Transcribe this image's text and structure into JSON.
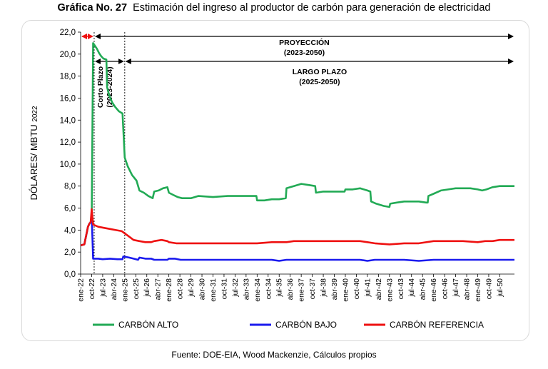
{
  "header": {
    "label": "Gráfica No. 27",
    "title": "Estimación del ingreso al productor de carbón para generación de electricidad"
  },
  "footer": {
    "source": "Fuente: DOE-EIA, Wood Mackenzie, Cálculos propios"
  },
  "chart_data": {
    "type": "line",
    "ylabel_main": "DÓLARES/ MBTU",
    "ylabel_sub": "2022",
    "ylim": [
      0,
      22
    ],
    "yticks": [
      "0,0",
      "2,0",
      "4,0",
      "6,0",
      "8,0",
      "10,0",
      "12,0",
      "14,0",
      "16,0",
      "18,0",
      "20,0",
      "22,0"
    ],
    "xticks": [
      "ene-22",
      "oct-22",
      "jul-23",
      "abr-24",
      "ene-25",
      "oct-25",
      "jul-26",
      "abr-27",
      "ene-28",
      "oct-28",
      "jul-29",
      "abr-30",
      "ene-31",
      "oct-31",
      "jul-32",
      "abr-33",
      "ene-34",
      "oct-34",
      "jul-35",
      "abr-36",
      "ene-37",
      "oct-37",
      "jul-38",
      "abr-39",
      "ene-40",
      "oct-40",
      "jul-41",
      "abr-42",
      "ene-43",
      "oct-43",
      "jul-44",
      "abr-45",
      "ene-46",
      "oct-46",
      "jul-47",
      "abr-48",
      "ene-49",
      "oct-49",
      "jul-50"
    ],
    "annotations": {
      "proyeccion": "PROYECCIÓN",
      "proyeccion_range": "(2023-2050)",
      "largo_plazo": "LARGO PLAZO",
      "largo_plazo_range": "(2025-2050)",
      "corto_plazo": "Corto Plazo",
      "corto_plazo_range": "(2023-2024)"
    },
    "legend_position": "bottom",
    "series": [
      {
        "name": "CARBÓN ALTO",
        "color": "#22aa55",
        "points": [
          [
            2022.0,
            2.6
          ],
          [
            2022.25,
            2.7
          ],
          [
            2022.5,
            4.3
          ],
          [
            2022.6,
            4.6
          ],
          [
            2022.68,
            4.7
          ],
          [
            2022.75,
            5.2
          ],
          [
            2022.85,
            21.0
          ],
          [
            2023.1,
            20.5
          ],
          [
            2023.25,
            20.1
          ],
          [
            2023.4,
            19.8
          ],
          [
            2023.55,
            19.6
          ],
          [
            2023.75,
            19.5
          ],
          [
            2023.8,
            17.0
          ],
          [
            2023.95,
            16.2
          ],
          [
            2024.15,
            15.6
          ],
          [
            2024.35,
            15.2
          ],
          [
            2024.6,
            14.8
          ],
          [
            2024.85,
            14.6
          ],
          [
            2025.0,
            10.6
          ],
          [
            2025.2,
            9.8
          ],
          [
            2025.5,
            9.0
          ],
          [
            2025.8,
            8.5
          ],
          [
            2026.0,
            7.6
          ],
          [
            2026.3,
            7.4
          ],
          [
            2026.6,
            7.1
          ],
          [
            2026.9,
            6.9
          ],
          [
            2027.0,
            7.5
          ],
          [
            2027.3,
            7.6
          ],
          [
            2027.6,
            7.8
          ],
          [
            2027.9,
            7.9
          ],
          [
            2028.0,
            7.4
          ],
          [
            2028.3,
            7.2
          ],
          [
            2028.6,
            7.0
          ],
          [
            2028.9,
            6.9
          ],
          [
            2029.0,
            6.9
          ],
          [
            2029.5,
            6.9
          ],
          [
            2030.0,
            7.1
          ],
          [
            2031.0,
            7.0
          ],
          [
            2032.0,
            7.1
          ],
          [
            2033.0,
            7.1
          ],
          [
            2033.95,
            7.1
          ],
          [
            2034.0,
            6.7
          ],
          [
            2034.5,
            6.7
          ],
          [
            2035.0,
            6.8
          ],
          [
            2035.5,
            6.8
          ],
          [
            2035.95,
            6.9
          ],
          [
            2036.0,
            7.8
          ],
          [
            2036.5,
            8.0
          ],
          [
            2037.0,
            8.2
          ],
          [
            2037.5,
            8.1
          ],
          [
            2037.95,
            8.0
          ],
          [
            2038.0,
            7.4
          ],
          [
            2038.5,
            7.5
          ],
          [
            2039.0,
            7.5
          ],
          [
            2039.95,
            7.5
          ],
          [
            2040.0,
            7.7
          ],
          [
            2040.5,
            7.7
          ],
          [
            2041.0,
            7.8
          ],
          [
            2041.5,
            7.6
          ],
          [
            2041.7,
            7.5
          ],
          [
            2041.75,
            6.6
          ],
          [
            2042.1,
            6.4
          ],
          [
            2042.6,
            6.2
          ],
          [
            2043.0,
            6.1
          ],
          [
            2043.05,
            6.4
          ],
          [
            2043.5,
            6.5
          ],
          [
            2044.0,
            6.6
          ],
          [
            2044.5,
            6.6
          ],
          [
            2045.0,
            6.6
          ],
          [
            2045.5,
            6.5
          ],
          [
            2045.6,
            6.5
          ],
          [
            2045.65,
            7.1
          ],
          [
            2046.0,
            7.3
          ],
          [
            2046.5,
            7.6
          ],
          [
            2047.0,
            7.7
          ],
          [
            2047.5,
            7.8
          ],
          [
            2048.0,
            7.8
          ],
          [
            2048.5,
            7.8
          ],
          [
            2049.0,
            7.7
          ],
          [
            2049.3,
            7.6
          ],
          [
            2049.6,
            7.7
          ],
          [
            2050.0,
            7.9
          ],
          [
            2050.5,
            8.0
          ],
          [
            2051.0,
            8.0
          ],
          [
            2051.5,
            8.0
          ]
        ]
      },
      {
        "name": "CARBÓN BAJO",
        "color": "#1a1aee",
        "points": [
          [
            2022.0,
            2.6
          ],
          [
            2022.25,
            2.7
          ],
          [
            2022.5,
            4.3
          ],
          [
            2022.6,
            4.6
          ],
          [
            2022.68,
            4.7
          ],
          [
            2022.75,
            5.3
          ],
          [
            2022.85,
            1.4
          ],
          [
            2023.2,
            1.4
          ],
          [
            2023.5,
            1.35
          ],
          [
            2024.0,
            1.4
          ],
          [
            2024.5,
            1.35
          ],
          [
            2024.85,
            1.35
          ],
          [
            2024.9,
            1.6
          ],
          [
            2025.3,
            1.5
          ],
          [
            2025.6,
            1.4
          ],
          [
            2025.9,
            1.3
          ],
          [
            2026.0,
            1.5
          ],
          [
            2026.4,
            1.4
          ],
          [
            2026.8,
            1.4
          ],
          [
            2027.0,
            1.3
          ],
          [
            2027.5,
            1.3
          ],
          [
            2027.9,
            1.3
          ],
          [
            2028.0,
            1.4
          ],
          [
            2028.4,
            1.4
          ],
          [
            2028.8,
            1.3
          ],
          [
            2029.0,
            1.3
          ],
          [
            2030.0,
            1.3
          ],
          [
            2031.0,
            1.3
          ],
          [
            2032.0,
            1.3
          ],
          [
            2033.0,
            1.3
          ],
          [
            2034.0,
            1.3
          ],
          [
            2035.0,
            1.3
          ],
          [
            2035.5,
            1.2
          ],
          [
            2036.0,
            1.3
          ],
          [
            2037.0,
            1.3
          ],
          [
            2038.0,
            1.3
          ],
          [
            2039.0,
            1.3
          ],
          [
            2040.0,
            1.3
          ],
          [
            2041.0,
            1.3
          ],
          [
            2041.5,
            1.2
          ],
          [
            2042.0,
            1.3
          ],
          [
            2043.0,
            1.3
          ],
          [
            2044.0,
            1.3
          ],
          [
            2045.0,
            1.2
          ],
          [
            2046.0,
            1.3
          ],
          [
            2047.0,
            1.3
          ],
          [
            2048.0,
            1.3
          ],
          [
            2049.0,
            1.3
          ],
          [
            2050.0,
            1.3
          ],
          [
            2051.5,
            1.3
          ]
        ]
      },
      {
        "name": "CARBÓN REFERENCIA",
        "color": "#ee1111",
        "points": [
          [
            2022.0,
            2.6
          ],
          [
            2022.25,
            2.7
          ],
          [
            2022.5,
            4.3
          ],
          [
            2022.6,
            4.6
          ],
          [
            2022.68,
            4.7
          ],
          [
            2022.75,
            5.9
          ],
          [
            2022.85,
            4.5
          ],
          [
            2023.2,
            4.3
          ],
          [
            2023.6,
            4.2
          ],
          [
            2024.0,
            4.1
          ],
          [
            2024.4,
            4.0
          ],
          [
            2024.8,
            3.9
          ],
          [
            2025.2,
            3.5
          ],
          [
            2025.6,
            3.1
          ],
          [
            2026.0,
            3.0
          ],
          [
            2026.4,
            2.9
          ],
          [
            2026.8,
            2.9
          ],
          [
            2027.0,
            3.0
          ],
          [
            2027.5,
            3.1
          ],
          [
            2027.9,
            3.0
          ],
          [
            2028.0,
            2.9
          ],
          [
            2028.5,
            2.8
          ],
          [
            2029.0,
            2.8
          ],
          [
            2030.0,
            2.8
          ],
          [
            2031.0,
            2.8
          ],
          [
            2032.0,
            2.8
          ],
          [
            2033.0,
            2.8
          ],
          [
            2034.0,
            2.8
          ],
          [
            2035.0,
            2.9
          ],
          [
            2036.0,
            2.9
          ],
          [
            2036.5,
            3.0
          ],
          [
            2037.0,
            3.0
          ],
          [
            2038.0,
            3.0
          ],
          [
            2039.0,
            3.0
          ],
          [
            2040.0,
            3.0
          ],
          [
            2041.0,
            3.0
          ],
          [
            2041.5,
            2.9
          ],
          [
            2042.0,
            2.8
          ],
          [
            2043.0,
            2.7
          ],
          [
            2044.0,
            2.8
          ],
          [
            2045.0,
            2.8
          ],
          [
            2046.0,
            3.0
          ],
          [
            2047.0,
            3.0
          ],
          [
            2048.0,
            3.0
          ],
          [
            2049.0,
            2.9
          ],
          [
            2049.5,
            3.0
          ],
          [
            2050.0,
            3.0
          ],
          [
            2050.5,
            3.1
          ],
          [
            2051.5,
            3.1
          ]
        ]
      }
    ]
  }
}
